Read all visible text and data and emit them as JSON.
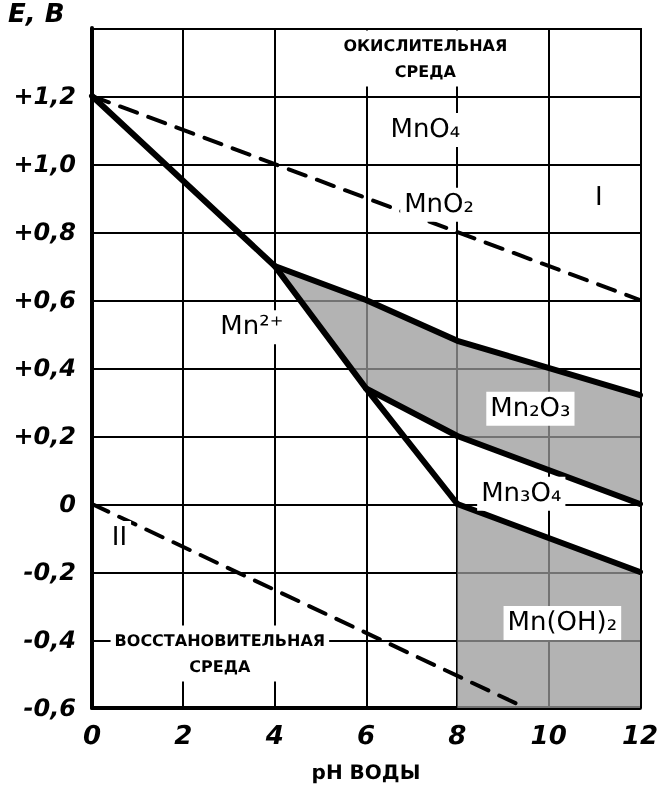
{
  "chart_data": {
    "type": "line",
    "xlabel": "pH ВОДЫ",
    "ylabel": "E, В",
    "xlim": [
      0,
      12
    ],
    "xticks": [
      0,
      2,
      4,
      6,
      8,
      10,
      12
    ],
    "ylim": [
      -0.6,
      1.4
    ],
    "yticks": [
      {
        "value": -0.6,
        "label": "-0,6"
      },
      {
        "value": -0.4,
        "label": "-0,4"
      },
      {
        "value": -0.2,
        "label": "-0,2"
      },
      {
        "value": 0,
        "label": "0"
      },
      {
        "value": 0.2,
        "label": "+0,2"
      },
      {
        "value": 0.4,
        "label": "+0,4"
      },
      {
        "value": 0.6,
        "label": "+0,6"
      },
      {
        "value": 0.8,
        "label": "+0,8"
      },
      {
        "value": 1.0,
        "label": "+1,0"
      },
      {
        "value": 1.2,
        "label": "+1,2"
      },
      {
        "value": 1.4,
        "label": null
      }
    ],
    "grid": true,
    "marker": "none",
    "series": [
      {
        "x": [
          0,
          12
        ],
        "values": [
          1.2,
          0.6
        ],
        "line_style": "dashed",
        "color": "#000000"
      },
      {
        "x": [
          0,
          9.5
        ],
        "values": [
          0,
          -0.6
        ],
        "line_style": "dashed",
        "color": "#000000"
      },
      {
        "x": [
          0,
          4,
          6,
          8
        ],
        "values": [
          1.2,
          0.7,
          0.34,
          0
        ],
        "line_style": "solid",
        "color": "#000000"
      },
      {
        "x": [
          4,
          6,
          8,
          12
        ],
        "values": [
          0.7,
          0.6,
          0.48,
          0.32
        ],
        "lower": [
          0.7,
          0.34,
          0.2,
          0
        ],
        "upper": [
          0.7,
          0.6,
          0.48,
          0.32
        ],
        "line_style": "solid",
        "color": "#000000"
      },
      {
        "x": [
          6,
          8,
          12
        ],
        "values": [
          0.34,
          0.2,
          0
        ],
        "line_style": "solid",
        "color": "#000000"
      },
      {
        "x": [
          8,
          12
        ],
        "values": [
          0,
          -0.2
        ],
        "lower": [
          -0.6,
          -0.6
        ],
        "upper": [
          0,
          -0.2
        ],
        "line_style": "solid",
        "color": "#000000"
      }
    ],
    "annotations": [
      "ОКИСЛИТЕЛЬНАЯ\nСРЕДА",
      {
        "text": "MnO₄",
        "x": 7.3,
        "y": 1.1
      },
      {
        "text": "MnO₂",
        "x": 7.6,
        "y": 0.88
      },
      {
        "text": "I",
        "x": 11.1,
        "y": 0.9
      },
      {
        "text": "Mn²⁺",
        "x": 3.5,
        "y": 0.52
      },
      "Mn₂O₃",
      "Mn₃O₄",
      "Mn(OH)₂",
      {
        "text": "II",
        "x": 0.6,
        "y": -0.1
      },
      "ВОССТАНОВИТЕЛЬНАЯ\nСРЕДА"
    ]
  }
}
